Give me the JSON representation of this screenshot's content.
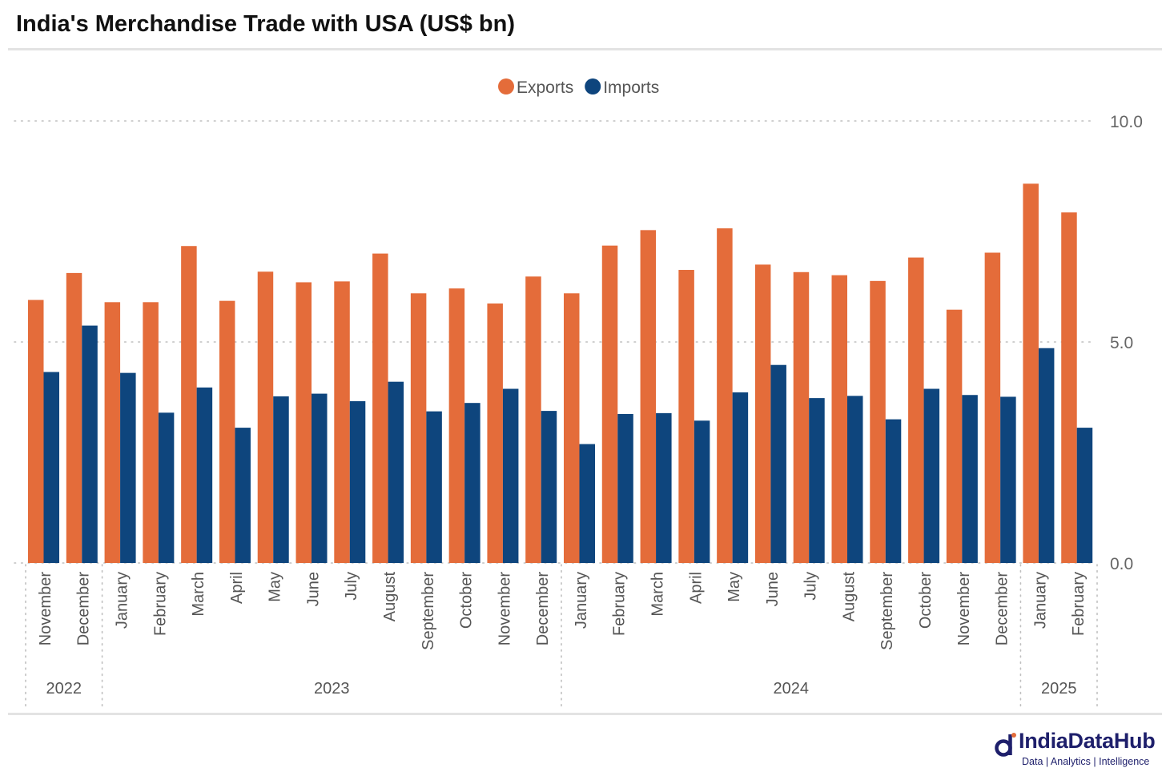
{
  "title": "India's Merchandise Trade with USA (US$ bn)",
  "logo": {
    "name": "IndiaDataHub",
    "tagline": "Data | Analytics | Intelligence",
    "color": "#1e1f6b"
  },
  "chart_data": {
    "type": "bar",
    "title": "India's Merchandise Trade with USA (US$ bn)",
    "ylim": [
      0,
      10
    ],
    "yticks": [
      "10.0",
      "5.0",
      "0.0"
    ],
    "ytick_values": [
      10,
      5,
      0
    ],
    "y_axis_side": "right",
    "grid": true,
    "legend_position": "top-center",
    "categories": [
      "November",
      "December",
      "January",
      "February",
      "March",
      "April",
      "May",
      "June",
      "July",
      "August",
      "September",
      "October",
      "November",
      "December",
      "January",
      "February",
      "March",
      "April",
      "May",
      "June",
      "July",
      "August",
      "September",
      "October",
      "November",
      "December",
      "January",
      "February"
    ],
    "year_groups": [
      {
        "label": "2022",
        "count": 2
      },
      {
        "label": "2023",
        "count": 12
      },
      {
        "label": "2024",
        "count": 12
      },
      {
        "label": "2025",
        "count": 2
      }
    ],
    "series": [
      {
        "name": "Exports",
        "color": "#e46c3a",
        "values": [
          5.95,
          6.56,
          5.9,
          5.9,
          7.17,
          5.93,
          6.59,
          6.35,
          6.37,
          7.0,
          6.1,
          6.21,
          5.87,
          6.48,
          6.1,
          7.18,
          7.53,
          6.63,
          7.57,
          6.75,
          6.58,
          6.51,
          6.38,
          6.91,
          5.73,
          7.02,
          8.58,
          7.93
        ]
      },
      {
        "name": "Imports",
        "color": "#0e457d",
        "values": [
          4.32,
          5.37,
          4.3,
          3.4,
          3.97,
          3.06,
          3.77,
          3.83,
          3.66,
          4.1,
          3.43,
          3.62,
          3.94,
          3.44,
          2.69,
          3.37,
          3.39,
          3.22,
          3.86,
          4.48,
          3.73,
          3.78,
          3.25,
          3.94,
          3.8,
          3.76,
          4.86,
          3.06
        ]
      }
    ]
  }
}
